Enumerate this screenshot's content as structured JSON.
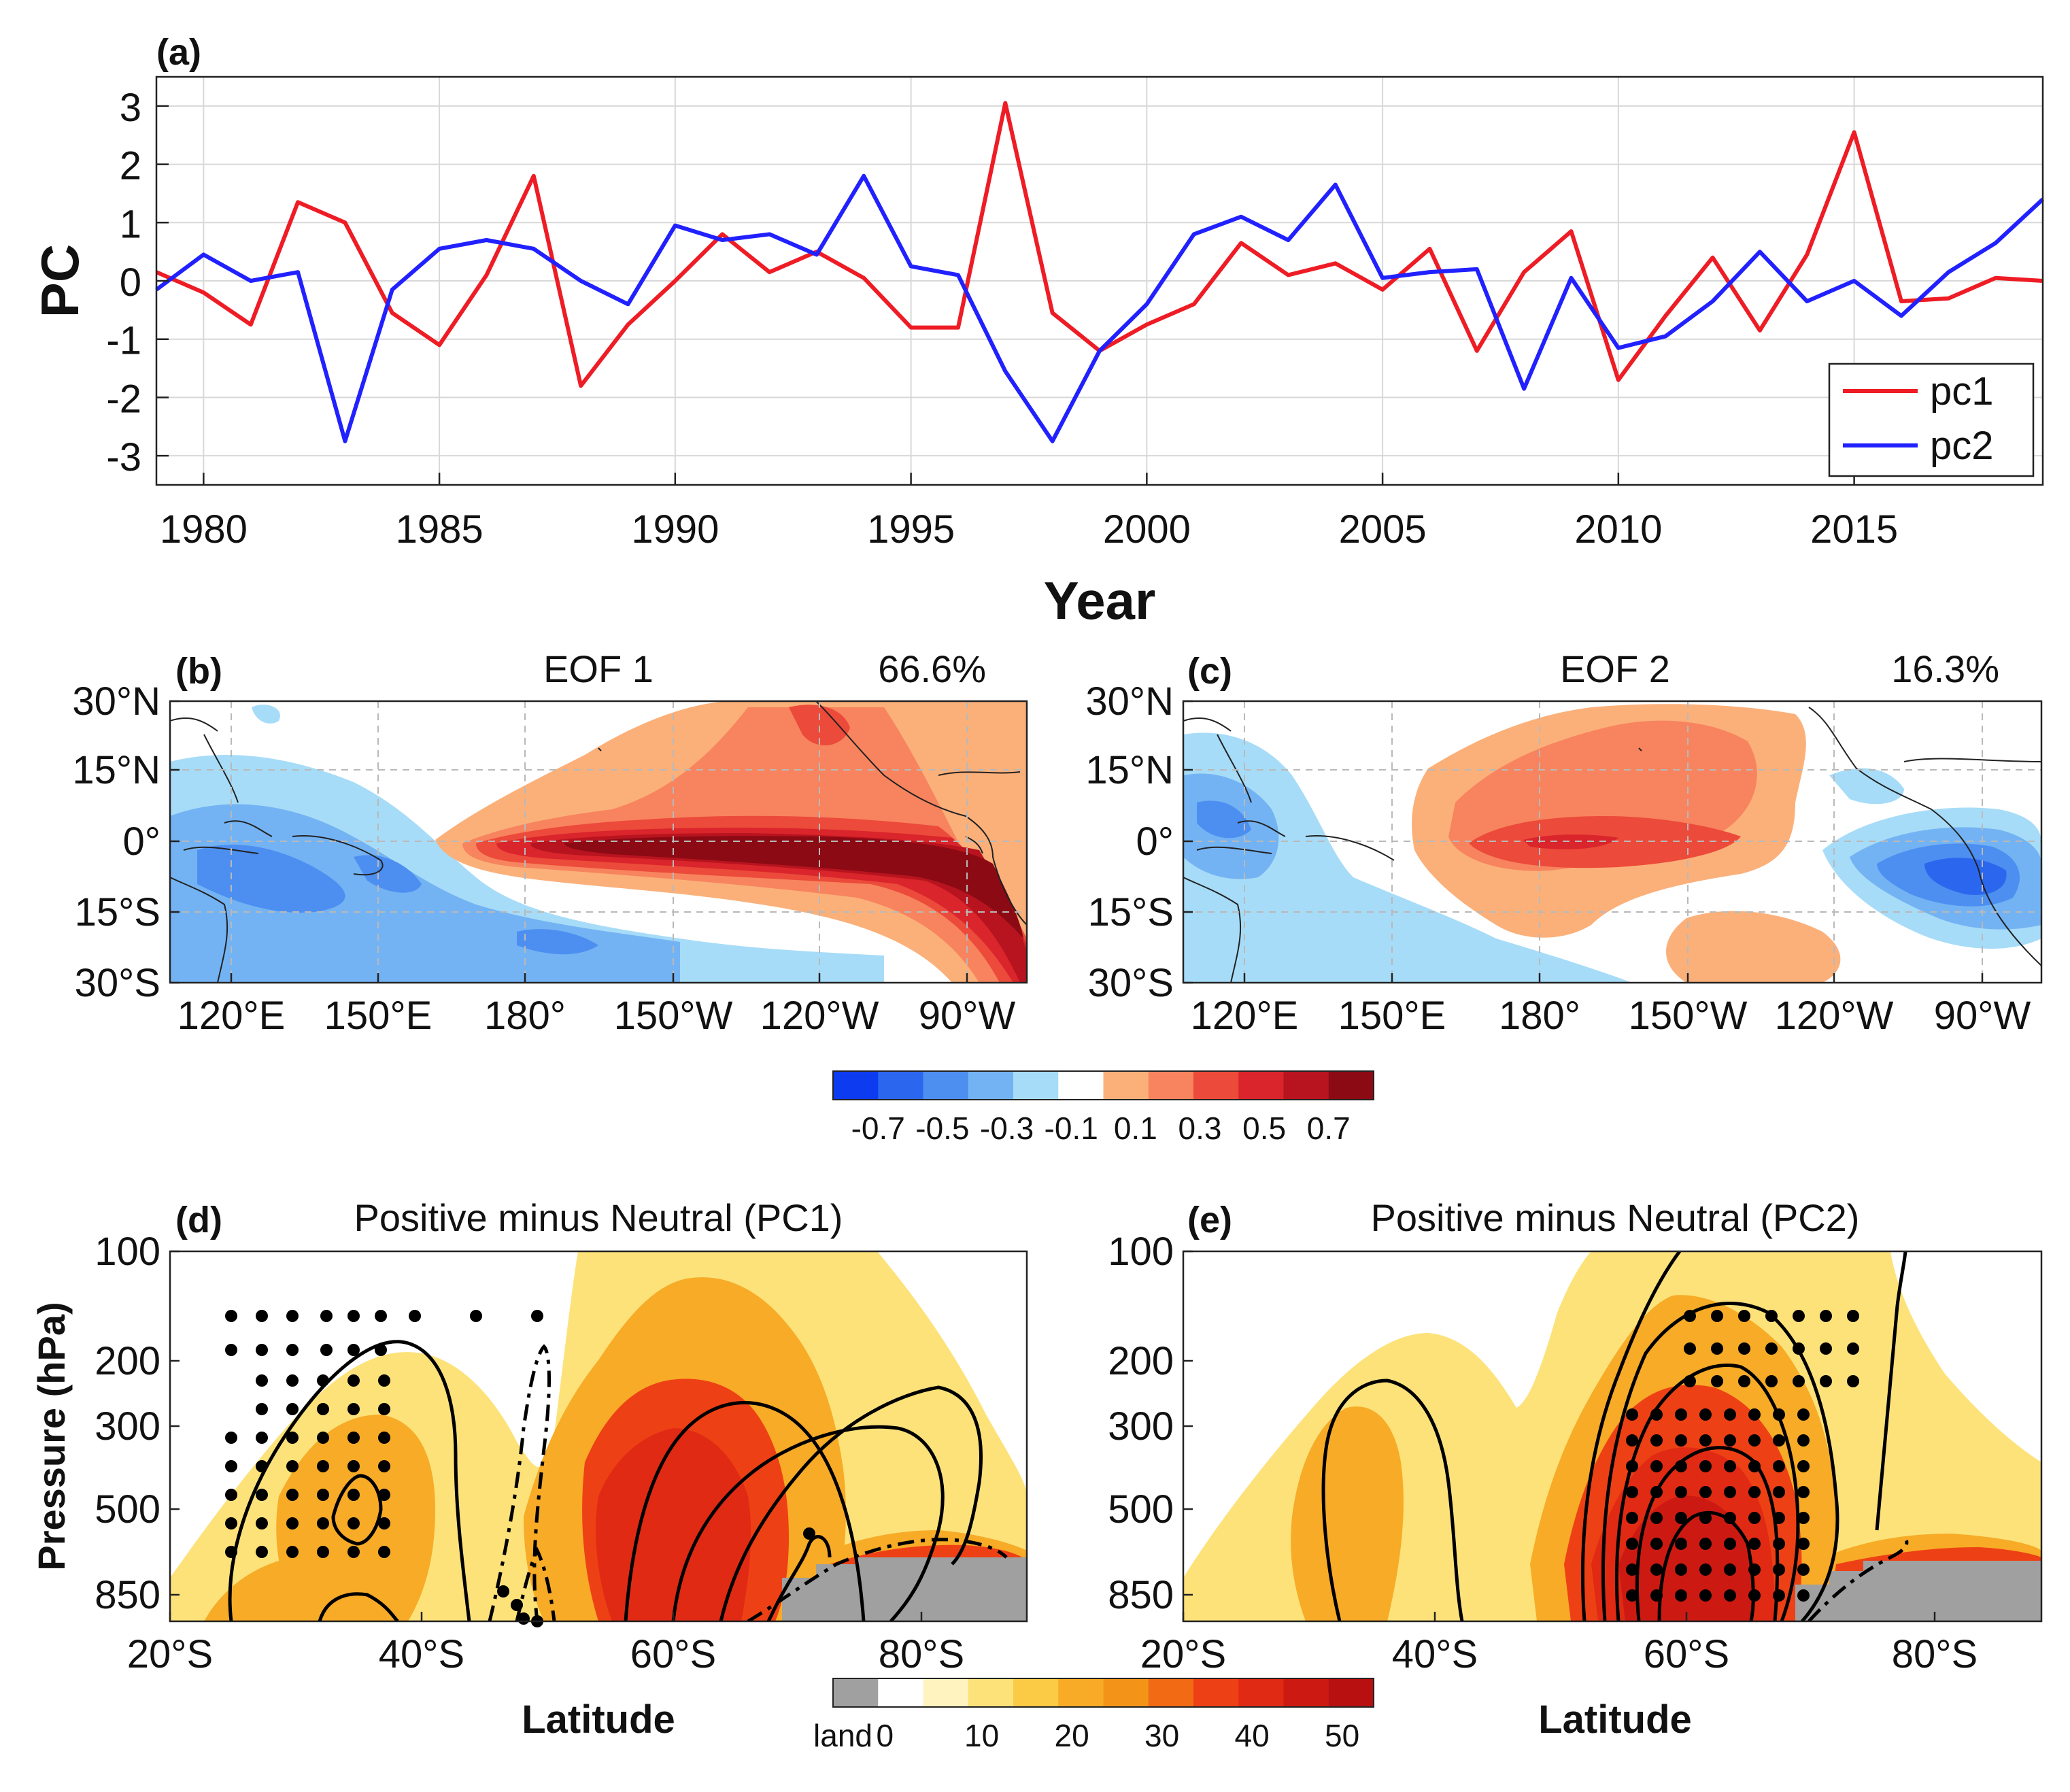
{
  "chart_data": [
    {
      "id": "a",
      "type": "line",
      "panel_label": "(a)",
      "title": "",
      "xlabel": "Year",
      "ylabel": "PC",
      "xlim": [
        1979,
        2019
      ],
      "ylim": [
        -3.5,
        3.5
      ],
      "xticks": [
        "1980",
        "1985",
        "1990",
        "1995",
        "2000",
        "2005",
        "2010",
        "2015"
      ],
      "yticks": [
        "3",
        "2",
        "1",
        "0",
        "-1",
        "-2",
        "-3"
      ],
      "x": [
        1979,
        1980,
        1981,
        1982,
        1983,
        1984,
        1985,
        1986,
        1987,
        1988,
        1989,
        1990,
        1991,
        1992,
        1993,
        1994,
        1995,
        1996,
        1997,
        1998,
        1999,
        2000,
        2001,
        2002,
        2003,
        2004,
        2005,
        2006,
        2007,
        2008,
        2009,
        2010,
        2011,
        2012,
        2013,
        2014,
        2015,
        2016,
        2017,
        2018,
        2019
      ],
      "series": [
        {
          "name": "pc1",
          "color": "#ee1c25",
          "values": [
            0.15,
            -0.2,
            -0.75,
            1.35,
            1.0,
            -0.55,
            -1.1,
            0.1,
            1.8,
            -1.8,
            -0.75,
            0.0,
            0.8,
            0.15,
            0.5,
            0.05,
            -0.8,
            -0.8,
            3.05,
            -0.55,
            -1.2,
            -0.75,
            -0.4,
            0.65,
            0.1,
            0.3,
            -0.15,
            0.55,
            -1.2,
            0.15,
            0.85,
            -1.7,
            -0.6,
            0.4,
            -0.85,
            0.45,
            2.55,
            -0.35,
            -0.3,
            0.05,
            0.0
          ]
        },
        {
          "name": "pc2",
          "color": "#2121ff",
          "values": [
            -0.15,
            0.45,
            0.0,
            0.15,
            -2.75,
            -0.15,
            0.55,
            0.7,
            0.55,
            0.0,
            -0.4,
            0.95,
            0.7,
            0.8,
            0.45,
            1.8,
            0.25,
            0.1,
            -1.55,
            -2.75,
            -1.2,
            -0.4,
            0.8,
            1.1,
            0.7,
            1.65,
            0.05,
            0.15,
            0.2,
            -1.85,
            0.05,
            -1.15,
            -0.95,
            -0.35,
            0.5,
            -0.35,
            0.0,
            -0.6,
            0.15,
            0.65,
            1.4
          ]
        }
      ],
      "legend": "bottom-right"
    },
    {
      "id": "b",
      "type": "heatmap",
      "panel_label": "(b)",
      "title": "EOF 1",
      "variance": "66.6%",
      "yticks": [
        "30°N",
        "15°N",
        "0°",
        "15°S",
        "30°S"
      ],
      "xticks": [
        "120°E",
        "150°E",
        "180°",
        "150°W",
        "120°W",
        "90°W"
      ]
    },
    {
      "id": "c",
      "type": "heatmap",
      "panel_label": "(c)",
      "title": "EOF 2",
      "variance": "16.3%",
      "yticks": [
        "30°N",
        "15°N",
        "0°",
        "15°S",
        "30°S"
      ],
      "xticks": [
        "120°E",
        "150°E",
        "180°",
        "150°W",
        "120°W",
        "90°W"
      ]
    },
    {
      "id": "d",
      "type": "heatmap",
      "panel_label": "(d)",
      "title": "Positive minus Neutral (PC1)",
      "xlabel": "Latitude",
      "ylabel": "Pressure (hPa)",
      "yticks": [
        "100",
        "200",
        "300",
        "500",
        "850"
      ],
      "xticks": [
        "20°S",
        "40°S",
        "60°S",
        "80°S"
      ]
    },
    {
      "id": "e",
      "type": "heatmap",
      "panel_label": "(e)",
      "title": "Positive minus Neutral (PC2)",
      "xlabel": "Latitude",
      "yticks": [
        "100",
        "200",
        "300",
        "500",
        "850"
      ],
      "xticks": [
        "20°S",
        "40°S",
        "60°S",
        "80°S"
      ]
    }
  ],
  "colorbar_eof": {
    "labels": [
      "-0.7",
      "-0.5",
      "-0.3",
      "-0.1",
      "0.1",
      "0.3",
      "0.5",
      "0.7"
    ],
    "colors": [
      "#0d3bf0",
      "#2b67ee",
      "#4d8ff0",
      "#74b3f3",
      "#a7dcf8",
      "#ffffff",
      "#fbb07a",
      "#f7845e",
      "#ec4a3a",
      "#d9252b",
      "#b8141f",
      "#8c0a14"
    ]
  },
  "colorbar_wind": {
    "land_label": "land",
    "labels": [
      "0",
      "10",
      "20",
      "30",
      "40",
      "50"
    ],
    "colors": [
      "#a0a0a0",
      "#ffffff",
      "#fff4c0",
      "#fde27a",
      "#fbcb45",
      "#f7ab26",
      "#f39419",
      "#f26a14",
      "#ee4015",
      "#e02a14",
      "#cc1a12",
      "#b81010"
    ]
  }
}
